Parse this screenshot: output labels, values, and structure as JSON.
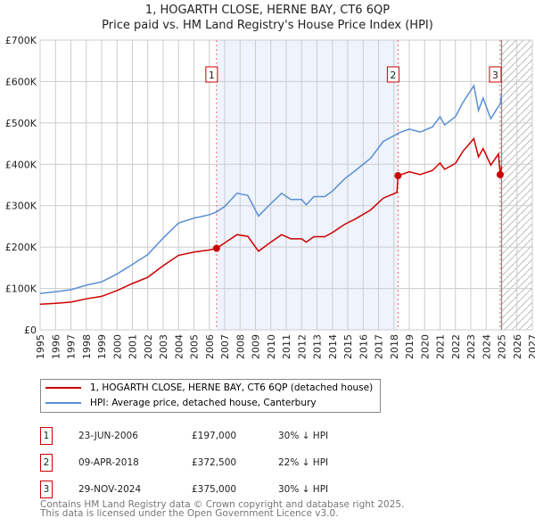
{
  "chart_data": {
    "type": "line",
    "title": "1, HOGARTH CLOSE, HERNE BAY, CT6 6QP",
    "subtitle": "Price paid vs. HM Land Registry's House Price Index (HPI)",
    "xlim": [
      1995,
      2027
    ],
    "ylim": [
      0,
      700000
    ],
    "yticks": [
      0,
      100000,
      200000,
      300000,
      400000,
      500000,
      600000,
      700000
    ],
    "ytick_labels": [
      "£0",
      "£100K",
      "£200K",
      "£300K",
      "£400K",
      "£500K",
      "£600K",
      "£700K"
    ],
    "xticks": [
      "1995",
      "1996",
      "1997",
      "1998",
      "1999",
      "2000",
      "2001",
      "2002",
      "2003",
      "2004",
      "2005",
      "2006",
      "2007",
      "2008",
      "2009",
      "2010",
      "2011",
      "2012",
      "2013",
      "2014",
      "2015",
      "2016",
      "2017",
      "2018",
      "2019",
      "2020",
      "2021",
      "2022",
      "2023",
      "2024",
      "2025",
      "2026",
      "2027"
    ],
    "grid": true,
    "shaded_region": [
      2006.47,
      2018.27
    ],
    "future_hatch_from": 2025.0,
    "colors": {
      "price": "#cc0000",
      "hpi": "#5b8fd4",
      "shade": "#eef3fc"
    },
    "series": [
      {
        "name": "1, HOGARTH CLOSE, HERNE BAY, CT6 6QP (detached house)",
        "x": [
          1995,
          1996,
          1997,
          1998,
          1999,
          2000,
          2001,
          2002,
          2003,
          2004,
          2005,
          2006,
          2006.47,
          2007,
          2007.8,
          2008.5,
          2009.2,
          2010,
          2010.7,
          2011.3,
          2012,
          2012.3,
          2012.8,
          2013.5,
          2014,
          2014.8,
          2015.5,
          2016.5,
          2017.3,
          2018.2,
          2018.27,
          2019,
          2019.7,
          2020.5,
          2021,
          2021.3,
          2022,
          2022.5,
          2023.2,
          2023.5,
          2023.8,
          2024.3,
          2024.8,
          2024.91,
          2025
        ],
        "values": [
          62000,
          64000,
          67000,
          75000,
          81000,
          95000,
          112000,
          127000,
          155000,
          180000,
          188000,
          193000,
          197000,
          210000,
          230000,
          226000,
          190000,
          212000,
          230000,
          220000,
          220000,
          212000,
          225000,
          225000,
          235000,
          255000,
          268000,
          290000,
          318000,
          332000,
          372500,
          382000,
          375000,
          385000,
          403000,
          388000,
          402000,
          432000,
          462000,
          418000,
          438000,
          398000,
          425000,
          375000,
          395000
        ]
      },
      {
        "name": "HPI: Average price, detached house, Canterbury",
        "x": [
          1995,
          1996,
          1997,
          1998,
          1999,
          2000,
          2001,
          2002,
          2003,
          2004,
          2005,
          2006,
          2006.47,
          2007,
          2007.8,
          2008.5,
          2009.2,
          2010,
          2010.7,
          2011.3,
          2012,
          2012.3,
          2012.8,
          2013.5,
          2014,
          2014.8,
          2015.5,
          2016.5,
          2017.3,
          2018.2,
          2018.27,
          2019,
          2019.7,
          2020.5,
          2021,
          2021.3,
          2022,
          2022.5,
          2023.2,
          2023.5,
          2023.8,
          2024.3,
          2024.8,
          2024.91,
          2025
        ],
        "values": [
          88000,
          92000,
          97000,
          108000,
          116000,
          135000,
          158000,
          182000,
          222000,
          258000,
          270000,
          278000,
          285000,
          298000,
          330000,
          325000,
          275000,
          305000,
          330000,
          315000,
          315000,
          302000,
          322000,
          322000,
          335000,
          365000,
          385000,
          415000,
          455000,
          473000,
          475000,
          485000,
          478000,
          490000,
          515000,
          495000,
          515000,
          550000,
          590000,
          530000,
          560000,
          510000,
          540000,
          545000,
          570000
        ]
      }
    ],
    "sales": [
      {
        "label": "1",
        "x": 2006.47,
        "value": 197000
      },
      {
        "label": "2",
        "x": 2018.27,
        "value": 372500
      },
      {
        "label": "3",
        "x": 2024.91,
        "value": 375000
      }
    ]
  },
  "legend": {
    "price_label": "1, HOGARTH CLOSE, HERNE BAY, CT6 6QP (detached house)",
    "hpi_label": "HPI: Average price, detached house, Canterbury"
  },
  "transactions": [
    {
      "num": "1",
      "date": "23-JUN-2006",
      "price": "£197,000",
      "hpi": "30% ↓ HPI"
    },
    {
      "num": "2",
      "date": "09-APR-2018",
      "price": "£372,500",
      "hpi": "22% ↓ HPI"
    },
    {
      "num": "3",
      "date": "29-NOV-2024",
      "price": "£375,000",
      "hpi": "30% ↓ HPI"
    }
  ],
  "footer": {
    "line1": "Contains HM Land Registry data © Crown copyright and database right 2025.",
    "line2": "This data is licensed under the Open Government Licence v3.0."
  }
}
